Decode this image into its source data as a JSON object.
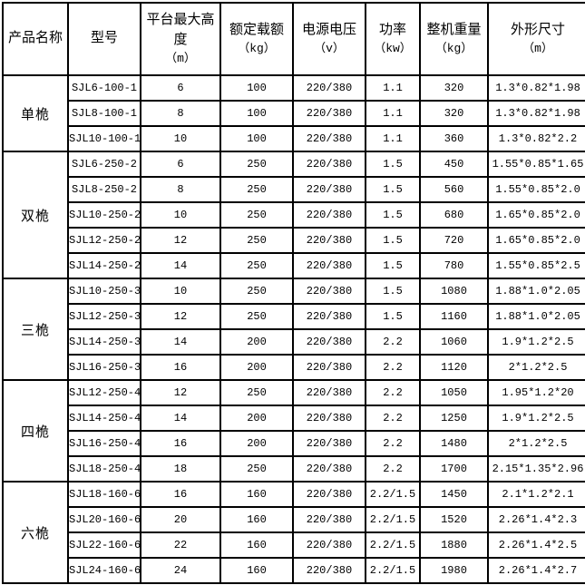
{
  "colors": {
    "background": "#ffffff",
    "border": "#000000",
    "text": "#000000"
  },
  "table": {
    "headers": [
      {
        "label": "产品名称",
        "unit": ""
      },
      {
        "label": "型号",
        "unit": ""
      },
      {
        "label": "平台最大高度",
        "unit": "（m）"
      },
      {
        "label": "额定载额",
        "unit": "（kg）"
      },
      {
        "label": "电源电压",
        "unit": "（v）"
      },
      {
        "label": "功率",
        "unit": "（kw）"
      },
      {
        "label": "整机重量",
        "unit": "（kg）"
      },
      {
        "label": "外形尺寸",
        "unit": "（m）"
      }
    ],
    "groups": [
      {
        "name": "单桅",
        "rows": [
          [
            "SJL6-100-1",
            "6",
            "100",
            "220/380",
            "1.1",
            "320",
            "1.3*0.82*1.98"
          ],
          [
            "SJL8-100-1",
            "8",
            "100",
            "220/380",
            "1.1",
            "320",
            "1.3*0.82*1.98"
          ],
          [
            "SJL10-100-1",
            "10",
            "100",
            "220/380",
            "1.1",
            "360",
            "1.3*0.82*2.2"
          ]
        ]
      },
      {
        "name": "双桅",
        "rows": [
          [
            "SJL6-250-2",
            "6",
            "250",
            "220/380",
            "1.5",
            "450",
            "1.55*0.85*1.65"
          ],
          [
            "SJL8-250-2",
            "8",
            "250",
            "220/380",
            "1.5",
            "560",
            "1.55*0.85*2.0"
          ],
          [
            "SJL10-250-2",
            "10",
            "250",
            "220/380",
            "1.5",
            "680",
            "1.65*0.85*2.0"
          ],
          [
            "SJL12-250-2",
            "12",
            "250",
            "220/380",
            "1.5",
            "720",
            "1.65*0.85*2.0"
          ],
          [
            "SJL14-250-2",
            "14",
            "250",
            "220/380",
            "1.5",
            "780",
            "1.55*0.85*2.5"
          ]
        ]
      },
      {
        "name": "三桅",
        "rows": [
          [
            "SJL10-250-3",
            "10",
            "250",
            "220/380",
            "1.5",
            "1080",
            "1.88*1.0*2.05"
          ],
          [
            "SJL12-250-3",
            "12",
            "250",
            "220/380",
            "1.5",
            "1160",
            "1.88*1.0*2.05"
          ],
          [
            "SJL14-250-3",
            "14",
            "200",
            "220/380",
            "2.2",
            "1060",
            "1.9*1.2*2.5"
          ],
          [
            "SJL16-250-3",
            "16",
            "200",
            "220/380",
            "2.2",
            "1120",
            "2*1.2*2.5"
          ]
        ]
      },
      {
        "name": "四桅",
        "rows": [
          [
            "SJL12-250-4",
            "12",
            "250",
            "220/380",
            "2.2",
            "1050",
            "1.95*1.2*20"
          ],
          [
            "SJL14-250-4",
            "14",
            "200",
            "220/380",
            "2.2",
            "1250",
            "1.9*1.2*2.5"
          ],
          [
            "SJL16-250-4",
            "16",
            "200",
            "220/380",
            "2.2",
            "1480",
            "2*1.2*2.5"
          ],
          [
            "SJL18-250-4",
            "18",
            "250",
            "220/380",
            "2.2",
            "1700",
            "2.15*1.35*2.96"
          ]
        ]
      },
      {
        "name": "六桅",
        "rows": [
          [
            "SJL18-160-6",
            "16",
            "160",
            "220/380",
            "2.2/1.5",
            "1450",
            "2.1*1.2*2.1"
          ],
          [
            "SJL20-160-6",
            "20",
            "160",
            "220/380",
            "2.2/1.5",
            "1520",
            "2.26*1.4*2.3"
          ],
          [
            "SJL22-160-6",
            "22",
            "160",
            "220/380",
            "2.2/1.5",
            "1880",
            "2.26*1.4*2.5"
          ],
          [
            "SJL24-160-6",
            "24",
            "160",
            "220/380",
            "2.2/1.5",
            "1980",
            "2.26*1.4*2.7"
          ]
        ]
      }
    ]
  }
}
